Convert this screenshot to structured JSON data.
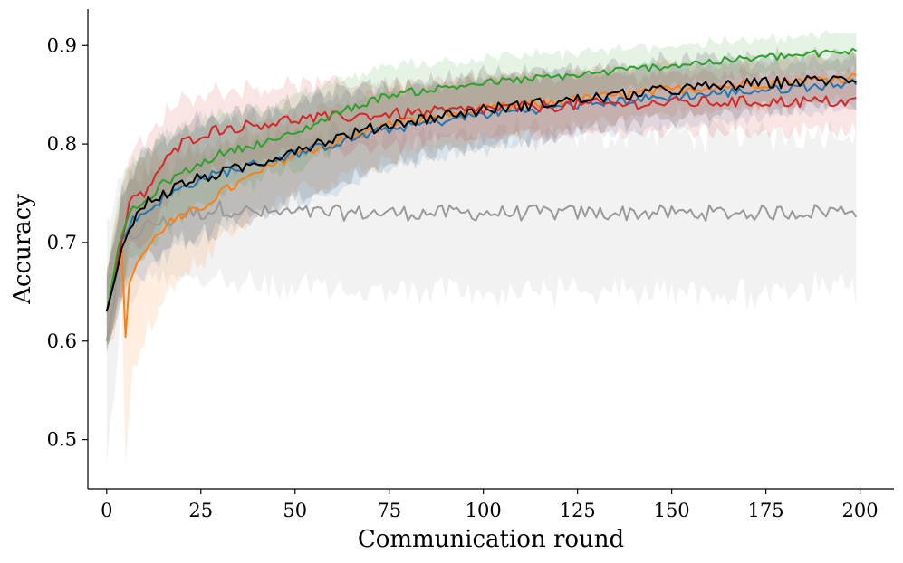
{
  "chart_data": {
    "type": "line",
    "title": "",
    "xlabel": "Communication round",
    "ylabel": "Accuracy",
    "xlim": [
      -5,
      209
    ],
    "ylim": [
      0.45,
      0.937
    ],
    "xticks": [
      0,
      25,
      50,
      75,
      100,
      125,
      150,
      175,
      200
    ],
    "yticks": [
      0.5,
      0.6,
      0.7,
      0.8,
      0.9
    ],
    "xtick_labels": [
      "0",
      "25",
      "50",
      "75",
      "100",
      "125",
      "150",
      "175",
      "200"
    ],
    "ytick_labels": [
      "0.5",
      "0.6",
      "0.7",
      "0.8",
      "0.9"
    ],
    "grid": false,
    "legend": "none",
    "x_last": 199,
    "series": [
      {
        "color": "#999999",
        "mean_points": [
          [
            0,
            0.6
          ],
          [
            2,
            0.64
          ],
          [
            4,
            0.7
          ],
          [
            5,
            0.7
          ],
          [
            8,
            0.71
          ],
          [
            12,
            0.72
          ],
          [
            16,
            0.72
          ],
          [
            20,
            0.73
          ],
          [
            25,
            0.73
          ],
          [
            30,
            0.735
          ],
          [
            40,
            0.73
          ],
          [
            50,
            0.73
          ],
          [
            60,
            0.73
          ],
          [
            75,
            0.73
          ],
          [
            100,
            0.73
          ],
          [
            125,
            0.73
          ],
          [
            150,
            0.73
          ],
          [
            175,
            0.73
          ],
          [
            199,
            0.733
          ]
        ],
        "band_points": [
          [
            0,
            0.12
          ],
          [
            4,
            0.07
          ],
          [
            10,
            0.05
          ],
          [
            20,
            0.06
          ],
          [
            30,
            0.07
          ],
          [
            50,
            0.08
          ],
          [
            75,
            0.08
          ],
          [
            100,
            0.08
          ],
          [
            125,
            0.08
          ],
          [
            150,
            0.08
          ],
          [
            175,
            0.08
          ],
          [
            199,
            0.08
          ]
        ],
        "noise": 0.008
      },
      {
        "color": "#ff7f0e",
        "mean_points": [
          [
            0,
            0.63
          ],
          [
            2,
            0.66
          ],
          [
            4,
            0.7
          ],
          [
            5,
            0.6
          ],
          [
            6,
            0.66
          ],
          [
            8,
            0.68
          ],
          [
            10,
            0.69
          ],
          [
            12,
            0.7
          ],
          [
            16,
            0.72
          ],
          [
            20,
            0.725
          ],
          [
            25,
            0.735
          ],
          [
            30,
            0.75
          ],
          [
            40,
            0.77
          ],
          [
            50,
            0.79
          ],
          [
            60,
            0.8
          ],
          [
            75,
            0.82
          ],
          [
            100,
            0.835
          ],
          [
            125,
            0.845
          ],
          [
            150,
            0.855
          ],
          [
            175,
            0.862
          ],
          [
            199,
            0.868
          ]
        ],
        "band_points": [
          [
            0,
            0.04
          ],
          [
            4,
            0.06
          ],
          [
            5,
            0.12
          ],
          [
            8,
            0.1
          ],
          [
            12,
            0.08
          ],
          [
            20,
            0.06
          ],
          [
            30,
            0.05
          ],
          [
            50,
            0.04
          ],
          [
            75,
            0.035
          ],
          [
            100,
            0.03
          ],
          [
            150,
            0.025
          ],
          [
            199,
            0.022
          ]
        ],
        "noise": 0.005
      },
      {
        "color": "#1f77b4",
        "mean_points": [
          [
            0,
            0.63
          ],
          [
            2,
            0.66
          ],
          [
            4,
            0.7
          ],
          [
            6,
            0.72
          ],
          [
            10,
            0.73
          ],
          [
            15,
            0.745
          ],
          [
            20,
            0.755
          ],
          [
            25,
            0.765
          ],
          [
            30,
            0.77
          ],
          [
            40,
            0.78
          ],
          [
            50,
            0.79
          ],
          [
            60,
            0.8
          ],
          [
            75,
            0.815
          ],
          [
            100,
            0.83
          ],
          [
            125,
            0.84
          ],
          [
            150,
            0.848
          ],
          [
            175,
            0.855
          ],
          [
            199,
            0.862
          ]
        ],
        "band_points": [
          [
            0,
            0.04
          ],
          [
            4,
            0.05
          ],
          [
            10,
            0.06
          ],
          [
            20,
            0.06
          ],
          [
            30,
            0.055
          ],
          [
            50,
            0.05
          ],
          [
            75,
            0.04
          ],
          [
            100,
            0.035
          ],
          [
            150,
            0.03
          ],
          [
            199,
            0.025
          ]
        ],
        "noise": 0.005
      },
      {
        "color": "#d62728",
        "mean_points": [
          [
            0,
            0.63
          ],
          [
            2,
            0.66
          ],
          [
            4,
            0.7
          ],
          [
            6,
            0.74
          ],
          [
            10,
            0.75
          ],
          [
            15,
            0.78
          ],
          [
            20,
            0.8
          ],
          [
            25,
            0.81
          ],
          [
            30,
            0.815
          ],
          [
            40,
            0.82
          ],
          [
            50,
            0.825
          ],
          [
            75,
            0.83
          ],
          [
            100,
            0.835
          ],
          [
            125,
            0.84
          ],
          [
            150,
            0.842
          ],
          [
            175,
            0.843
          ],
          [
            199,
            0.843
          ]
        ],
        "band_points": [
          [
            0,
            0.04
          ],
          [
            4,
            0.05
          ],
          [
            10,
            0.05
          ],
          [
            20,
            0.045
          ],
          [
            30,
            0.04
          ],
          [
            50,
            0.035
          ],
          [
            100,
            0.03
          ],
          [
            150,
            0.03
          ],
          [
            199,
            0.03
          ]
        ],
        "noise": 0.006
      },
      {
        "color": "#2ca02c",
        "mean_points": [
          [
            0,
            0.63
          ],
          [
            2,
            0.67
          ],
          [
            4,
            0.71
          ],
          [
            6,
            0.73
          ],
          [
            10,
            0.74
          ],
          [
            15,
            0.76
          ],
          [
            20,
            0.77
          ],
          [
            25,
            0.78
          ],
          [
            30,
            0.79
          ],
          [
            40,
            0.8
          ],
          [
            50,
            0.81
          ],
          [
            60,
            0.83
          ],
          [
            75,
            0.85
          ],
          [
            100,
            0.862
          ],
          [
            125,
            0.87
          ],
          [
            150,
            0.88
          ],
          [
            175,
            0.888
          ],
          [
            199,
            0.894
          ]
        ],
        "band_points": [
          [
            0,
            0.04
          ],
          [
            4,
            0.05
          ],
          [
            10,
            0.05
          ],
          [
            20,
            0.045
          ],
          [
            30,
            0.04
          ],
          [
            50,
            0.035
          ],
          [
            100,
            0.025
          ],
          [
            150,
            0.02
          ],
          [
            199,
            0.018
          ]
        ],
        "noise": 0.004
      },
      {
        "color": "#000000",
        "mean_points": [
          [
            0,
            0.63
          ],
          [
            2,
            0.66
          ],
          [
            4,
            0.7
          ],
          [
            5,
            0.7
          ],
          [
            8,
            0.73
          ],
          [
            12,
            0.745
          ],
          [
            16,
            0.75
          ],
          [
            20,
            0.76
          ],
          [
            25,
            0.765
          ],
          [
            30,
            0.77
          ],
          [
            40,
            0.78
          ],
          [
            50,
            0.795
          ],
          [
            60,
            0.805
          ],
          [
            75,
            0.82
          ],
          [
            100,
            0.835
          ],
          [
            125,
            0.845
          ],
          [
            150,
            0.855
          ],
          [
            175,
            0.862
          ],
          [
            199,
            0.866
          ]
        ],
        "band_points": [
          [
            0,
            0.04
          ],
          [
            4,
            0.05
          ],
          [
            10,
            0.06
          ],
          [
            20,
            0.06
          ],
          [
            30,
            0.055
          ],
          [
            50,
            0.05
          ],
          [
            75,
            0.04
          ],
          [
            100,
            0.035
          ],
          [
            150,
            0.03
          ],
          [
            199,
            0.025
          ]
        ],
        "noise": 0.006
      }
    ]
  }
}
